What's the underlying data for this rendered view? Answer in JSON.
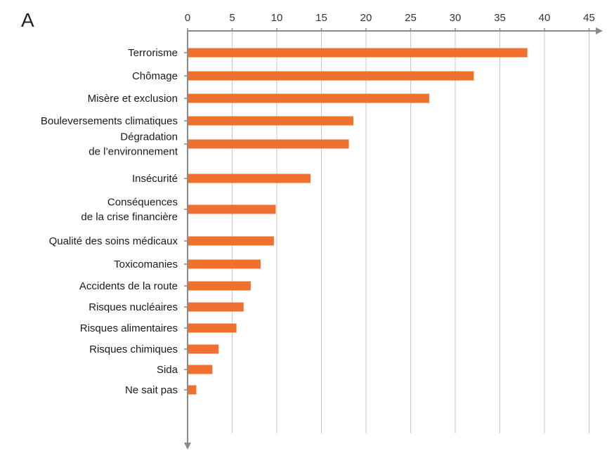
{
  "panel_label": "A",
  "chart_data": {
    "type": "bar",
    "orientation": "horizontal",
    "categories": [
      [
        "Terrorisme"
      ],
      [
        "Chômage"
      ],
      [
        "Misère et exclusion"
      ],
      [
        "Bouleversements climatiques"
      ],
      [
        "Dégradation",
        "de l’environnement"
      ],
      [
        "Insécurité"
      ],
      [
        "Conséquences",
        "de la crise financière"
      ],
      [
        "Qualité des soins médicaux"
      ],
      [
        "Toxicomanies"
      ],
      [
        "Accidents de la route"
      ],
      [
        "Risques nucléaires"
      ],
      [
        "Risques alimentaires"
      ],
      [
        "Risques chimiques"
      ],
      [
        "Sida"
      ],
      [
        "Ne sait pas"
      ]
    ],
    "values": [
      38,
      32,
      27,
      18.5,
      18,
      13.7,
      9.8,
      9.6,
      8.1,
      7,
      6.2,
      5.4,
      3.4,
      2.7,
      0.9
    ],
    "xticks": [
      "0",
      "5",
      "10",
      "15",
      "20",
      "25",
      "30",
      "35",
      "40",
      "45"
    ],
    "xlim": [
      0,
      47
    ],
    "axis_position": "top",
    "grid": true,
    "bar_color": "#f07030",
    "grid_color": "#c8c8c8",
    "axis_color": "#8a8a8a"
  }
}
